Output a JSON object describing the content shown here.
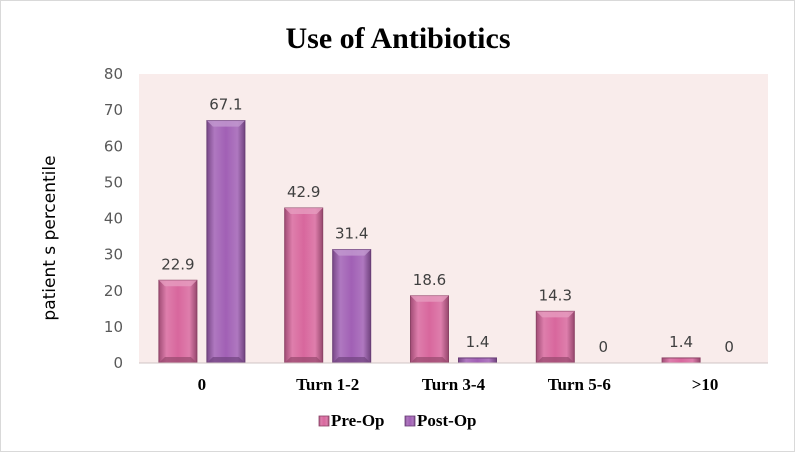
{
  "chart_data": {
    "type": "bar",
    "title": "Use of Antibiotics",
    "xlabel": "",
    "ylabel": "patient s percentile",
    "categories": [
      "0",
      "Turn 1-2",
      "Turn 3-4",
      "Turn 5-6",
      ">10"
    ],
    "series": [
      {
        "name": "Pre-Op",
        "values": [
          22.9,
          42.9,
          18.6,
          14.3,
          1.4
        ],
        "color": "#d8679d"
      },
      {
        "name": "Post-Op",
        "values": [
          67.1,
          31.4,
          1.4,
          0,
          0
        ],
        "color": "#a160b5"
      }
    ],
    "ylim": [
      0,
      80
    ],
    "yticks": [
      0,
      10,
      20,
      30,
      40,
      50,
      60,
      70,
      80
    ],
    "plot_background": "#f9eceb",
    "grid": false,
    "legend_position": "bottom",
    "data_labels": true
  }
}
